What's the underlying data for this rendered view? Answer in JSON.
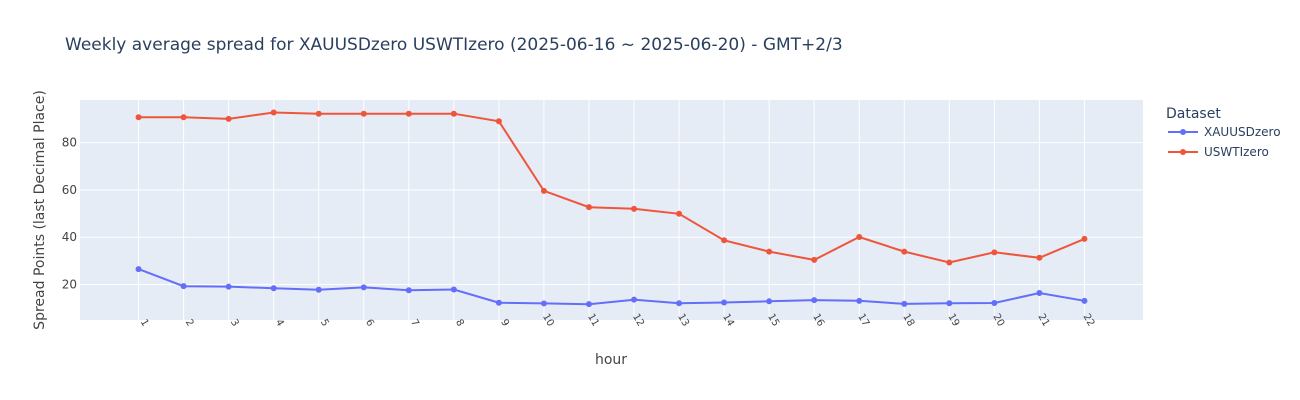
{
  "chart_data": {
    "type": "line",
    "title": "Weekly average spread for  XAUUSDzero USWTIzero (2025-06-16 ~ 2025-06-20) - GMT+2/3",
    "xlabel": "hour",
    "ylabel": "Spread Points (last Decimal Place)",
    "x": [
      1,
      2,
      3,
      4,
      5,
      6,
      7,
      8,
      9,
      10,
      11,
      12,
      13,
      14,
      15,
      16,
      17,
      18,
      19,
      20,
      21,
      22
    ],
    "yticks": [
      20,
      40,
      60,
      80
    ],
    "ylim": [
      5,
      98
    ],
    "grid": true,
    "legend": {
      "title": "Dataset",
      "placement": "right"
    },
    "series": [
      {
        "name": "XAUUSDzero",
        "color": "#636efa",
        "values": [
          26.5,
          19.3,
          19.1,
          18.4,
          17.8,
          18.8,
          17.6,
          17.9,
          12.3,
          12.0,
          11.7,
          13.6,
          12.1,
          12.4,
          12.9,
          13.4,
          13.1,
          11.8,
          12.1,
          12.2,
          16.4,
          13.1
        ]
      },
      {
        "name": "USWTIzero",
        "color": "#ef553b",
        "values": [
          90.7,
          90.7,
          90.0,
          92.7,
          92.2,
          92.2,
          92.2,
          92.2,
          89.0,
          59.6,
          52.7,
          52.0,
          49.9,
          38.7,
          33.9,
          30.4,
          40.1,
          33.9,
          29.3,
          33.6,
          31.3,
          39.3
        ]
      }
    ]
  }
}
